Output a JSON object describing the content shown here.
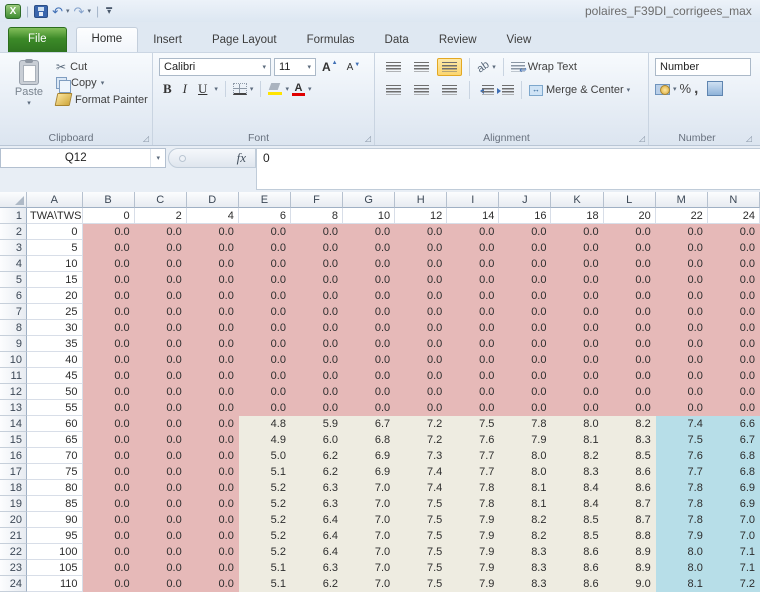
{
  "window": {
    "title": "polaires_F39DI_corrigees_max"
  },
  "icons": {
    "undo": "↶",
    "redo": "↷",
    "dropdown": "▾",
    "cut": "✂",
    "qat_menu_bar": "▬",
    "qat_menu_arrow": "▾",
    "launcher": "◿",
    "app_logo": "X"
  },
  "tabs": {
    "items": [
      "File",
      "Home",
      "Insert",
      "Page Layout",
      "Formulas",
      "Data",
      "Review",
      "View"
    ],
    "active": "Home"
  },
  "ribbon": {
    "clipboard": {
      "label": "Clipboard",
      "paste": "Paste",
      "cut": "Cut",
      "copy": "Copy",
      "format_painter": "Format Painter"
    },
    "font": {
      "label": "Font",
      "family": "Calibri",
      "size": "11",
      "bold": "B",
      "italic": "I",
      "underline": "U",
      "grow": "A",
      "shrink": "A"
    },
    "alignment": {
      "label": "Alignment",
      "wrap_text": "Wrap Text",
      "merge_center": "Merge & Center",
      "orientation": "ab"
    },
    "number": {
      "label": "Number",
      "format": "Number",
      "percent": "%",
      "comma": ","
    }
  },
  "formula_bar": {
    "name_box": "Q12",
    "function_symbol": "fx",
    "formula": "0"
  },
  "sheet": {
    "columns": [
      "A",
      "B",
      "C",
      "D",
      "E",
      "F",
      "G",
      "H",
      "I",
      "J",
      "K",
      "L",
      "M",
      "N"
    ],
    "header_row": [
      "TWA\\TWS",
      "0",
      "2",
      "4",
      "6",
      "8",
      "10",
      "12",
      "14",
      "16",
      "18",
      "20",
      "22",
      "24"
    ],
    "fills": {
      "zero": "#e6b9b8",
      "mid": "#eeece1",
      "high": "#b7dee8"
    },
    "rows": [
      {
        "twa": "0",
        "values": [
          "0.0",
          "0.0",
          "0.0",
          "0.0",
          "0.0",
          "0.0",
          "0.0",
          "0.0",
          "0.0",
          "0.0",
          "0.0",
          "0.0",
          "0.0"
        ]
      },
      {
        "twa": "5",
        "values": [
          "0.0",
          "0.0",
          "0.0",
          "0.0",
          "0.0",
          "0.0",
          "0.0",
          "0.0",
          "0.0",
          "0.0",
          "0.0",
          "0.0",
          "0.0"
        ]
      },
      {
        "twa": "10",
        "values": [
          "0.0",
          "0.0",
          "0.0",
          "0.0",
          "0.0",
          "0.0",
          "0.0",
          "0.0",
          "0.0",
          "0.0",
          "0.0",
          "0.0",
          "0.0"
        ]
      },
      {
        "twa": "15",
        "values": [
          "0.0",
          "0.0",
          "0.0",
          "0.0",
          "0.0",
          "0.0",
          "0.0",
          "0.0",
          "0.0",
          "0.0",
          "0.0",
          "0.0",
          "0.0"
        ]
      },
      {
        "twa": "20",
        "values": [
          "0.0",
          "0.0",
          "0.0",
          "0.0",
          "0.0",
          "0.0",
          "0.0",
          "0.0",
          "0.0",
          "0.0",
          "0.0",
          "0.0",
          "0.0"
        ]
      },
      {
        "twa": "25",
        "values": [
          "0.0",
          "0.0",
          "0.0",
          "0.0",
          "0.0",
          "0.0",
          "0.0",
          "0.0",
          "0.0",
          "0.0",
          "0.0",
          "0.0",
          "0.0"
        ]
      },
      {
        "twa": "30",
        "values": [
          "0.0",
          "0.0",
          "0.0",
          "0.0",
          "0.0",
          "0.0",
          "0.0",
          "0.0",
          "0.0",
          "0.0",
          "0.0",
          "0.0",
          "0.0"
        ]
      },
      {
        "twa": "35",
        "values": [
          "0.0",
          "0.0",
          "0.0",
          "0.0",
          "0.0",
          "0.0",
          "0.0",
          "0.0",
          "0.0",
          "0.0",
          "0.0",
          "0.0",
          "0.0"
        ]
      },
      {
        "twa": "40",
        "values": [
          "0.0",
          "0.0",
          "0.0",
          "0.0",
          "0.0",
          "0.0",
          "0.0",
          "0.0",
          "0.0",
          "0.0",
          "0.0",
          "0.0",
          "0.0"
        ]
      },
      {
        "twa": "45",
        "values": [
          "0.0",
          "0.0",
          "0.0",
          "0.0",
          "0.0",
          "0.0",
          "0.0",
          "0.0",
          "0.0",
          "0.0",
          "0.0",
          "0.0",
          "0.0"
        ]
      },
      {
        "twa": "50",
        "values": [
          "0.0",
          "0.0",
          "0.0",
          "0.0",
          "0.0",
          "0.0",
          "0.0",
          "0.0",
          "0.0",
          "0.0",
          "0.0",
          "0.0",
          "0.0"
        ]
      },
      {
        "twa": "55",
        "values": [
          "0.0",
          "0.0",
          "0.0",
          "0.0",
          "0.0",
          "0.0",
          "0.0",
          "0.0",
          "0.0",
          "0.0",
          "0.0",
          "0.0",
          "0.0"
        ]
      },
      {
        "twa": "60",
        "values": [
          "0.0",
          "0.0",
          "0.0",
          "4.8",
          "5.9",
          "6.7",
          "7.2",
          "7.5",
          "7.8",
          "8.0",
          "8.2",
          "7.4",
          "6.6"
        ]
      },
      {
        "twa": "65",
        "values": [
          "0.0",
          "0.0",
          "0.0",
          "4.9",
          "6.0",
          "6.8",
          "7.2",
          "7.6",
          "7.9",
          "8.1",
          "8.3",
          "7.5",
          "6.7"
        ]
      },
      {
        "twa": "70",
        "values": [
          "0.0",
          "0.0",
          "0.0",
          "5.0",
          "6.2",
          "6.9",
          "7.3",
          "7.7",
          "8.0",
          "8.2",
          "8.5",
          "7.6",
          "6.8"
        ]
      },
      {
        "twa": "75",
        "values": [
          "0.0",
          "0.0",
          "0.0",
          "5.1",
          "6.2",
          "6.9",
          "7.4",
          "7.7",
          "8.0",
          "8.3",
          "8.6",
          "7.7",
          "6.8"
        ]
      },
      {
        "twa": "80",
        "values": [
          "0.0",
          "0.0",
          "0.0",
          "5.2",
          "6.3",
          "7.0",
          "7.4",
          "7.8",
          "8.1",
          "8.4",
          "8.6",
          "7.8",
          "6.9"
        ]
      },
      {
        "twa": "85",
        "values": [
          "0.0",
          "0.0",
          "0.0",
          "5.2",
          "6.3",
          "7.0",
          "7.5",
          "7.8",
          "8.1",
          "8.4",
          "8.7",
          "7.8",
          "6.9"
        ]
      },
      {
        "twa": "90",
        "values": [
          "0.0",
          "0.0",
          "0.0",
          "5.2",
          "6.4",
          "7.0",
          "7.5",
          "7.9",
          "8.2",
          "8.5",
          "8.7",
          "7.8",
          "7.0"
        ]
      },
      {
        "twa": "95",
        "values": [
          "0.0",
          "0.0",
          "0.0",
          "5.2",
          "6.4",
          "7.0",
          "7.5",
          "7.9",
          "8.2",
          "8.5",
          "8.8",
          "7.9",
          "7.0"
        ]
      },
      {
        "twa": "100",
        "values": [
          "0.0",
          "0.0",
          "0.0",
          "5.2",
          "6.4",
          "7.0",
          "7.5",
          "7.9",
          "8.3",
          "8.6",
          "8.9",
          "8.0",
          "7.1"
        ]
      },
      {
        "twa": "105",
        "values": [
          "0.0",
          "0.0",
          "0.0",
          "5.1",
          "6.3",
          "7.0",
          "7.5",
          "7.9",
          "8.3",
          "8.6",
          "8.9",
          "8.0",
          "7.1"
        ]
      },
      {
        "twa": "110",
        "values": [
          "0.0",
          "0.0",
          "0.0",
          "5.1",
          "6.2",
          "7.0",
          "7.5",
          "7.9",
          "8.3",
          "8.6",
          "9.0",
          "8.1",
          "7.2"
        ]
      }
    ]
  }
}
